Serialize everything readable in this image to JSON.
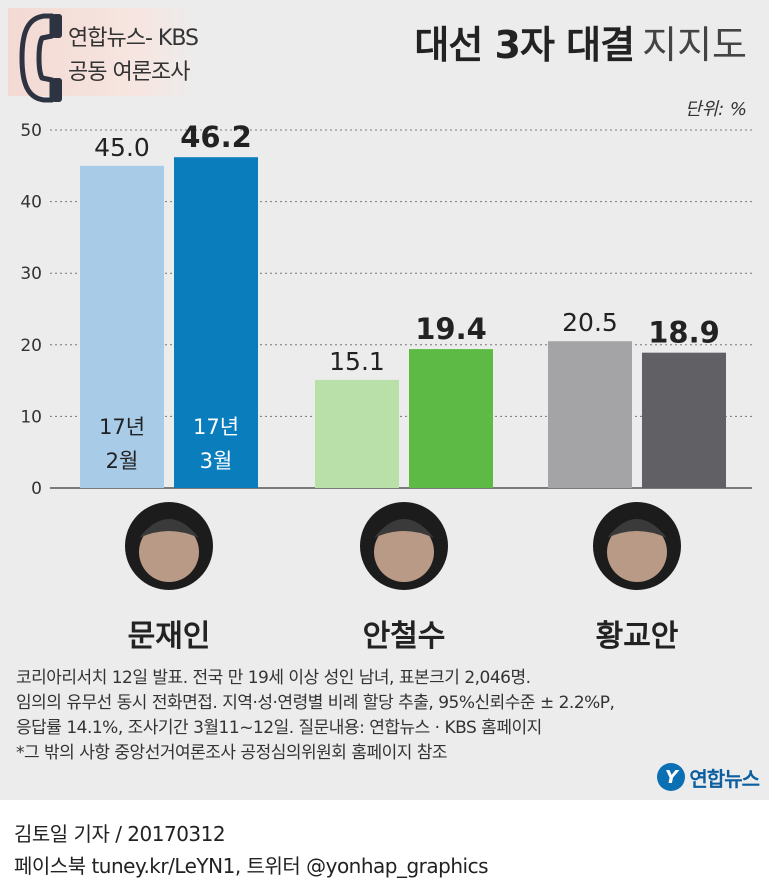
{
  "source": {
    "line1": "연합뉴스- KBS",
    "line2": "공동 여론조사",
    "icon": "phone-icon"
  },
  "title": {
    "bold": "대선 3자 대결",
    "light": "지지도"
  },
  "unit_label": "단위: %",
  "chart_data": {
    "type": "bar",
    "categories": [
      "문재인",
      "안철수",
      "황교안"
    ],
    "series": [
      {
        "name": "17년 2월",
        "values": [
          45.0,
          15.1,
          20.5
        ]
      },
      {
        "name": "17년 3월",
        "values": [
          46.2,
          19.4,
          18.9
        ]
      }
    ],
    "value_labels": [
      [
        "45.0",
        "46.2"
      ],
      [
        "15.1",
        "19.4"
      ],
      [
        "20.5",
        "18.9"
      ]
    ],
    "series_labels_line1": [
      "17년",
      "17년"
    ],
    "series_labels_line2": [
      "2월",
      "3월"
    ],
    "colors": [
      [
        "#a8cbe8",
        "#0a7dbd"
      ],
      [
        "#b9e0a8",
        "#5cba45"
      ],
      [
        "#a4a4a6",
        "#616165"
      ]
    ],
    "yticks": [
      0,
      10,
      20,
      30,
      40,
      50
    ],
    "ylim": [
      0,
      50
    ],
    "grid": true,
    "xlabel": "",
    "ylabel": ""
  },
  "footnotes": [
    "코리아리서치 12일 발표. 전국 만 19세 이상 성인 남녀, 표본크기 2,046명.",
    "임의의 유무선 동시 전화면접. 지역·성·연령별 비례 할당 추출, 95%신뢰수준 ± 2.2%P,",
    "응답률 14.1%, 조사기간 3월11~12일.  질문내용: 연합뉴스 · KBS 홈페이지",
    "*그 밖의 사항 중앙선거여론조사 공정심의위원회 홈페이지 참조"
  ],
  "logo": {
    "mark": "Y",
    "text": "연합뉴스"
  },
  "credit": {
    "line1": "김토일 기자 / 20170312",
    "line2": "페이스북 tuney.kr/LeYN1, 트위터 @yonhap_graphics"
  }
}
